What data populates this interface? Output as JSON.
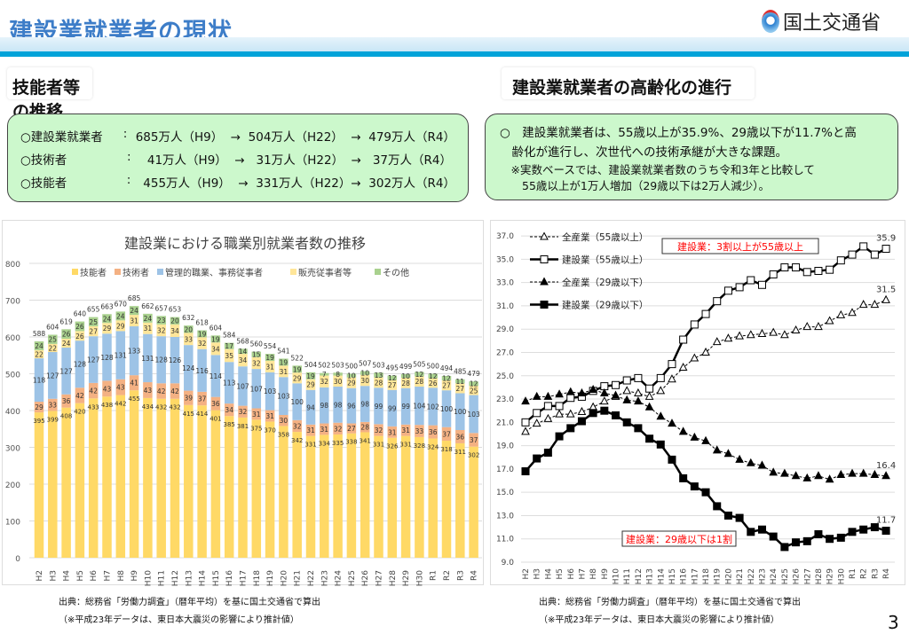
{
  "header": {
    "title": "建設業就業者の現状",
    "logo_text": "国土交通省"
  },
  "left": {
    "heading": "技能者等の推移",
    "rows": [
      {
        "label": "○建設業就業者",
        "sep": ":",
        "text": " 685万人（H9）  →  504万人（H22）  →  479万人（R4）"
      },
      {
        "label": "○技術者",
        "sep": ":",
        "text": "   41万人（H9）  →   31万人（H22）  →   37万人（R4）"
      },
      {
        "label": "○技能者",
        "sep": ":",
        "text": "  455万人（H9）  →  331万人（H22）→  302万人（R4）"
      }
    ]
  },
  "right": {
    "heading": "建設業就業者の高齢化の進行",
    "lines": [
      "○　建設業就業者は、55歳以上が35.9%、29歳以下が11.7%と高",
      "　齢化が進行し、次世代への技術承継が大きな課題。",
      "　※実数ベースでは、建設業就業者数のうち令和3年と比較して",
      "　　55歳以上が1万人増加（29歳以下は2万人減少）。"
    ]
  },
  "footer": {
    "source": "出典：総務省「労働力調査」（暦年平均）を基に国土交通省で算出",
    "note": "（※平成23年データは、東日本大震災の影響により推計値）",
    "page": "3"
  },
  "chart_data": [
    {
      "type": "bar",
      "stacked": true,
      "title": "建設業における職業別就業者数の推移",
      "ylim": [
        0,
        800
      ],
      "yticks": [
        0,
        100,
        200,
        300,
        400,
        500,
        600,
        700,
        800
      ],
      "legend": "top",
      "grid": true,
      "categories": [
        "H2",
        "H3",
        "H4",
        "H5",
        "H6",
        "H7",
        "H8",
        "H9",
        "H10",
        "H11",
        "H12",
        "H13",
        "H14",
        "H15",
        "H16",
        "H17",
        "H18",
        "H19",
        "H20",
        "H21",
        "H22",
        "H23",
        "H24",
        "H25",
        "H26",
        "H27",
        "H28",
        "H29",
        "H30",
        "R1",
        "R2",
        "R3",
        "R4"
      ],
      "series": [
        {
          "name": "技能者",
          "color": "#ffd966",
          "values": [
            395,
            399,
            408,
            420,
            433,
            438,
            442,
            455,
            434,
            432,
            432,
            415,
            414,
            401,
            385,
            381,
            375,
            370,
            358,
            342,
            331,
            334,
            335,
            338,
            341,
            331,
            326,
            331,
            328,
            324,
            318,
            311,
            302
          ]
        },
        {
          "name": "技術者",
          "color": "#f4b183",
          "values": [
            29,
            33,
            36,
            42,
            42,
            43,
            43,
            41,
            43,
            42,
            42,
            39,
            37,
            36,
            34,
            32,
            31,
            31,
            30,
            32,
            31,
            31,
            32,
            27,
            28,
            32,
            31,
            31,
            33,
            36,
            37,
            36,
            37
          ]
        },
        {
          "name": "管理的職業、事務従事者",
          "color": "#9dc3e6",
          "values": [
            118,
            127,
            127,
            128,
            127,
            128,
            131,
            133,
            131,
            128,
            126,
            124,
            116,
            114,
            113,
            107,
            107,
            103,
            103,
            100,
            94,
            98,
            98,
            96,
            98,
            99,
            99,
            99,
            104,
            102,
            100,
            100,
            103
          ]
        },
        {
          "name": "販売従事者等",
          "color": "#ffe699",
          "values": [
            22,
            22,
            24,
            26,
            27,
            29,
            29,
            31,
            31,
            32,
            34,
            33,
            32,
            34,
            35,
            34,
            32,
            31,
            31,
            29,
            29,
            32,
            30,
            29,
            30,
            28,
            27,
            28,
            28,
            26,
            27,
            27,
            25
          ]
        },
        {
          "name": "その他",
          "color": "#a9d18e",
          "values": [
            24,
            25,
            26,
            26,
            25,
            24,
            24,
            24,
            24,
            23,
            20,
            20,
            19,
            19,
            17,
            14,
            15,
            19,
            19,
            19,
            19,
            7,
            8,
            10,
            10,
            13,
            12,
            10,
            12,
            12,
            12,
            11,
            12
          ]
        }
      ],
      "totals": [
        588,
        604,
        619,
        640,
        655,
        663,
        670,
        685,
        662,
        657,
        653,
        632,
        618,
        604,
        584,
        568,
        560,
        554,
        541,
        522,
        504,
        502,
        503,
        500,
        507,
        503,
        495,
        499,
        505,
        500,
        494,
        485,
        479
      ]
    },
    {
      "type": "line",
      "ylim": [
        9,
        37
      ],
      "yticks": [
        "9.0",
        "11.0",
        "13.0",
        "15.0",
        "17.0",
        "19.0",
        "21.0",
        "23.0",
        "25.0",
        "27.0",
        "29.0",
        "31.0",
        "33.0",
        "35.0",
        "37.0"
      ],
      "legend": "top-left",
      "grid": true,
      "categories": [
        "H2",
        "H3",
        "H4",
        "H5",
        "H6",
        "H7",
        "H8",
        "H9",
        "H10",
        "H11",
        "H12",
        "H13",
        "H14",
        "H15",
        "H16",
        "H17",
        "H18",
        "H19",
        "H20",
        "H21",
        "H22",
        "H23",
        "H24",
        "H25",
        "H26",
        "H27",
        "H28",
        "H29",
        "H30",
        "R1",
        "R2",
        "R3",
        "R4"
      ],
      "series": [
        {
          "name": "全産業（55歳以上）",
          "marker": "open-triangle",
          "dashed": true,
          "values": [
            20.2,
            20.9,
            21.3,
            21.7,
            21.7,
            21.9,
            22.3,
            22.8,
            23.2,
            23.7,
            23.5,
            23.2,
            23.7,
            24.7,
            25.7,
            26.5,
            27.0,
            27.9,
            28.2,
            28.4,
            28.5,
            28.6,
            28.7,
            28.5,
            28.9,
            29.2,
            29.2,
            29.7,
            30.2,
            30.4,
            31.1,
            31.1,
            31.5
          ],
          "end_label": "31.5"
        },
        {
          "name": "建設業（55歳以上）",
          "marker": "open-square",
          "dashed": false,
          "values": [
            21.0,
            21.8,
            22.4,
            22.4,
            23.1,
            23.2,
            23.7,
            24.1,
            24.2,
            24.6,
            24.8,
            23.9,
            24.8,
            26.0,
            28.1,
            29.4,
            30.3,
            31.4,
            32.3,
            32.6,
            33.2,
            32.8,
            33.7,
            34.3,
            34.3,
            33.9,
            34.0,
            34.1,
            34.9,
            35.4,
            36.1,
            35.4,
            35.9
          ],
          "end_label": "35.9"
        },
        {
          "name": "全産業（29歳以下）",
          "marker": "filled-triangle",
          "dashed": true,
          "values": [
            22.8,
            23.2,
            23.2,
            23.4,
            23.6,
            23.5,
            23.8,
            23.5,
            23.3,
            22.9,
            22.8,
            22.3,
            21.5,
            20.9,
            20.2,
            19.7,
            19.4,
            18.6,
            18.3,
            17.8,
            17.5,
            17.3,
            16.7,
            16.6,
            16.4,
            16.2,
            16.4,
            16.1,
            16.5,
            16.6,
            16.6,
            16.5,
            16.4
          ],
          "end_label": "16.4"
        },
        {
          "name": "建設業（29歳以下）",
          "marker": "filled-square",
          "dashed": false,
          "values": [
            16.8,
            17.9,
            18.4,
            19.8,
            20.5,
            21.1,
            21.8,
            22.0,
            21.6,
            21.0,
            20.5,
            19.6,
            19.1,
            17.8,
            16.2,
            15.5,
            15.0,
            13.8,
            13.0,
            12.8,
            11.6,
            11.8,
            11.2,
            10.3,
            10.7,
            10.8,
            11.4,
            11.0,
            11.1,
            11.6,
            11.8,
            12.0,
            11.7
          ],
          "end_label": "11.7"
        }
      ],
      "annotations": [
        "建設業：3割以上が55歳以上",
        "建設業：29歳以下は1割"
      ],
      "annotation_color": "#ff0000"
    }
  ]
}
